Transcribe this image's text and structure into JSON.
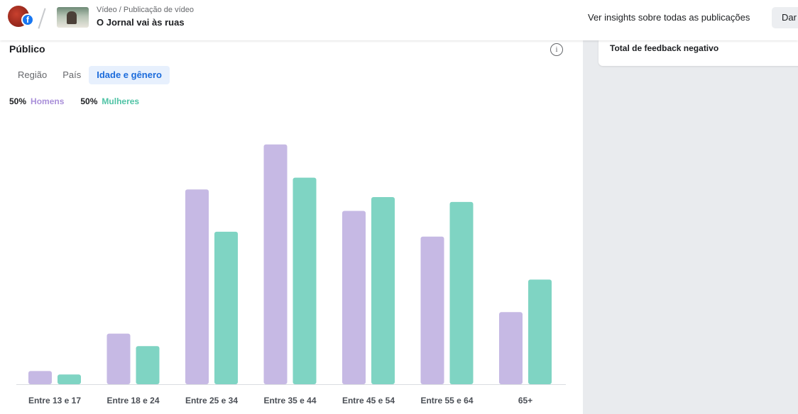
{
  "header": {
    "breadcrumb": "Vídeo / Publicação de vídeo",
    "title": "O Jornal vai às ruas",
    "insights_link": "Ver insights sobre todas as publicações",
    "boost_button": "Dar",
    "fb_badge": "f"
  },
  "right_panel": {
    "card_title": "Total de feedback negativo"
  },
  "audience": {
    "title": "Público",
    "info_icon": "i",
    "tabs": [
      {
        "label": "Região",
        "active": false
      },
      {
        "label": "País",
        "active": false
      },
      {
        "label": "Idade e gênero",
        "active": true
      }
    ],
    "legend": [
      {
        "pct": "50%",
        "name": "Homens"
      },
      {
        "pct": "50%",
        "name": "Mulheres"
      }
    ]
  },
  "colors": {
    "men": "#c6b9e4",
    "women": "#7fd4c3",
    "active_tab": "#1b6bdb"
  },
  "chart_data": {
    "type": "bar",
    "categories": [
      "Entre 13 e 17",
      "Entre 18 e 24",
      "Entre 25 e 34",
      "Entre 35 e 44",
      "Entre 45 e 54",
      "Entre 55 e 64",
      "65+"
    ],
    "series": [
      {
        "name": "Homens",
        "values": [
          1.9,
          7.3,
          28.1,
          34.6,
          25.0,
          21.3,
          10.4
        ]
      },
      {
        "name": "Mulheres",
        "values": [
          1.4,
          5.5,
          22.0,
          29.8,
          27.0,
          26.3,
          15.1
        ]
      }
    ],
    "ylim": [
      0,
      36
    ],
    "grid": false,
    "legend_position": "top-left"
  }
}
